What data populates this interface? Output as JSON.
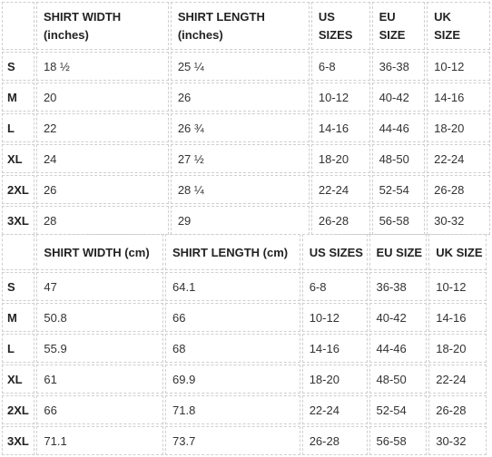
{
  "inches_table": {
    "headers": [
      {
        "line1": "",
        "line2": ""
      },
      {
        "line1": "SHIRT WIDTH",
        "line2": "(inches)"
      },
      {
        "line1": "SHIRT LENGTH",
        "line2": "(inches)"
      },
      {
        "line1": "US",
        "line2": "SIZES"
      },
      {
        "line1": "EU",
        "line2": "SIZE"
      },
      {
        "line1": "UK",
        "line2": "SIZE"
      }
    ],
    "rows": [
      [
        "S",
        "18 ½",
        "25 ¼",
        "6-8",
        "36-38",
        "10-12"
      ],
      [
        "M",
        "20",
        "26",
        "10-12",
        "40-42",
        "14-16"
      ],
      [
        "L",
        "22",
        "26 ¾",
        "14-16",
        "44-46",
        "18-20"
      ],
      [
        "XL",
        "24",
        "27 ½",
        "18-20",
        "48-50",
        "22-24"
      ],
      [
        "2XL",
        "26",
        "28 ¼",
        "22-24",
        "52-54",
        "26-28"
      ],
      [
        "3XL",
        "28",
        "29",
        "26-28",
        "56-58",
        "30-32"
      ]
    ]
  },
  "cm_table": {
    "headers": [
      "",
      "SHIRT WIDTH (cm)",
      "SHIRT LENGTH (cm)",
      "US SIZES",
      "EU SIZE",
      "UK SIZE"
    ],
    "rows": [
      [
        "S",
        "47",
        "64.1",
        "6-8",
        "36-38",
        "10-12"
      ],
      [
        "M",
        "50.8",
        "66",
        "10-12",
        "40-42",
        "14-16"
      ],
      [
        "L",
        "55.9",
        "68",
        "14-16",
        "44-46",
        "18-20"
      ],
      [
        "XL",
        "61",
        "69.9",
        "18-20",
        "48-50",
        "22-24"
      ],
      [
        "2XL",
        "66",
        "71.8",
        "22-24",
        "52-54",
        "26-28"
      ],
      [
        "3XL",
        "71.1",
        "73.7",
        "26-28",
        "56-58",
        "30-32"
      ]
    ]
  }
}
